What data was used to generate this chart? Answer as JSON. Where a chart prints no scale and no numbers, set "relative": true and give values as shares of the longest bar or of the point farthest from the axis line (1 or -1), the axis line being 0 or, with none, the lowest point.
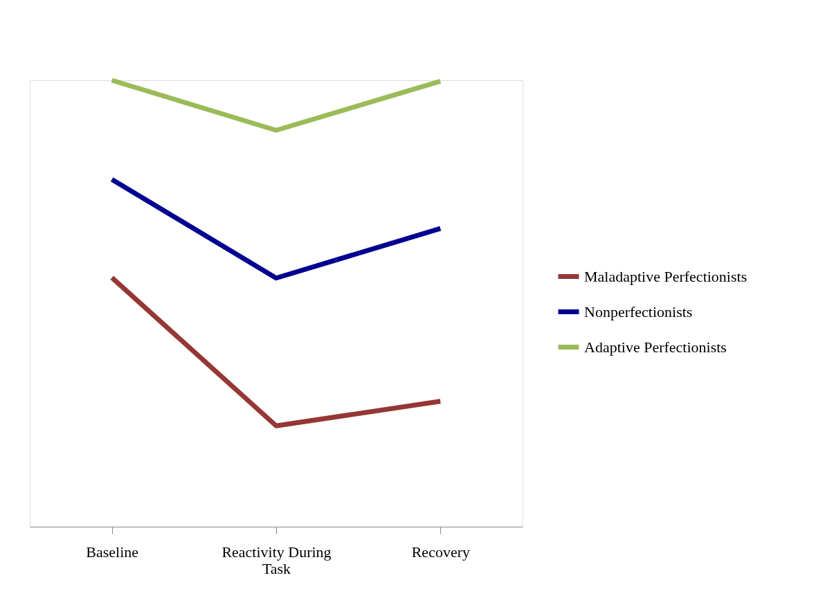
{
  "chart_data": {
    "type": "line",
    "relative": true,
    "categories": [
      "Baseline",
      "Reactivity During Task",
      "Recovery"
    ],
    "series": [
      {
        "name": "Maladaptive Perfectionists",
        "color": "#953735",
        "values": [
          0.558,
          0.226,
          0.281
        ]
      },
      {
        "name": "Nonperfectionists",
        "color": "#000090",
        "values": [
          0.778,
          0.557,
          0.668
        ]
      },
      {
        "name": "Adaptive Perfectionists",
        "color": "#9bbb59",
        "values": [
          1,
          0.888,
          0.998
        ]
      }
    ],
    "legend": "right",
    "grid": false,
    "marker": "none",
    "line_style": "solid"
  }
}
